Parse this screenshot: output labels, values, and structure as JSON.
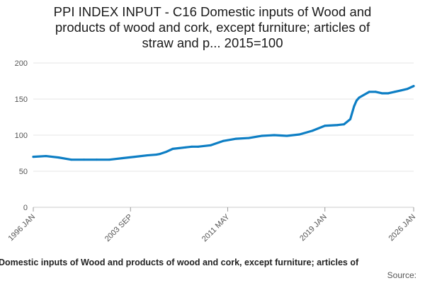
{
  "chart_data": {
    "type": "line",
    "title": "PPI INDEX INPUT - C16 Domestic inputs of Wood and products of wood and cork, except furniture; articles of straw and p... 2015=100",
    "title_lines": [
      "PPI INDEX INPUT - C16 Domestic inputs of Wood and",
      "products of wood and cork, except furniture; articles of",
      "straw and p... 2015=100"
    ],
    "xlabel": "",
    "ylabel": "",
    "ylim": [
      0,
      200
    ],
    "y_ticks": [
      0,
      50,
      100,
      150,
      200
    ],
    "x_ticks": [
      "1996 JAN",
      "2003 SEP",
      "2011 MAY",
      "2019 JAN",
      "2026 JAN"
    ],
    "grid": "horizontal",
    "legend_position": "bottom",
    "color": "#0d7ec4",
    "series": [
      {
        "name": "PPI INDEX INPUT - C16 Domestic inputs of Wood and products of wood and cork, except furniture; articles of straw and p... 2015=100",
        "x": [
          1996.0,
          1997.0,
          1998.0,
          1999.0,
          2000.0,
          2001.0,
          2002.0,
          2003.0,
          2004.0,
          2005.0,
          2005.7,
          2006.0,
          2006.5,
          2007.0,
          2007.5,
          2008.0,
          2008.5,
          2009.0,
          2010.0,
          2011.0,
          2012.0,
          2013.0,
          2014.0,
          2015.0,
          2016.0,
          2017.0,
          2018.0,
          2019.0,
          2020.0,
          2020.5,
          2021.0,
          2021.3,
          2021.5,
          2021.7,
          2022.0,
          2022.5,
          2023.0,
          2023.5,
          2024.0,
          2024.5,
          2025.0,
          2025.5,
          2026.0
        ],
        "values": [
          70,
          71,
          69,
          66,
          66,
          66,
          66,
          68,
          70,
          72,
          73,
          74,
          77,
          81,
          82,
          83,
          84,
          84,
          86,
          92,
          95,
          96,
          99,
          100,
          99,
          101,
          106,
          113,
          114,
          115,
          122,
          140,
          148,
          152,
          155,
          160,
          160,
          158,
          158,
          160,
          162,
          164,
          168
        ]
      }
    ]
  },
  "legend": {
    "label": "Domestic inputs of Wood and products of wood and cork, except furniture; articles of"
  },
  "source": {
    "label": "Source:"
  }
}
